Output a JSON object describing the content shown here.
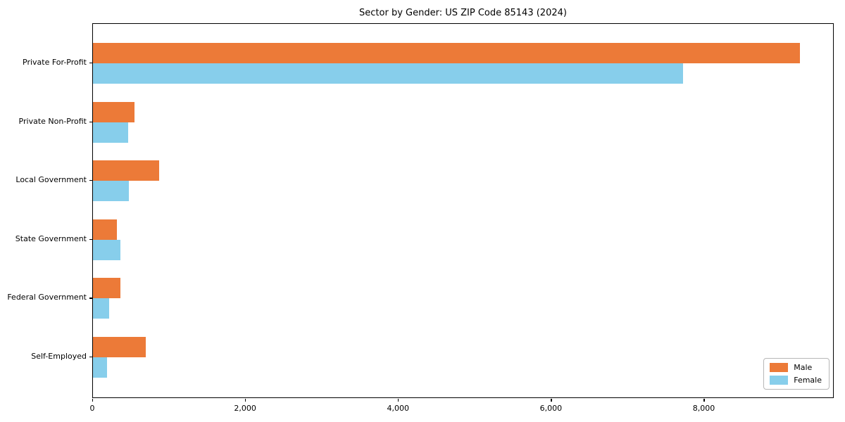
{
  "title": "Sector by Gender: US ZIP Code 85143 (2024)",
  "chart_data": {
    "type": "bar",
    "orientation": "horizontal",
    "title": "Sector by Gender: US ZIP Code 85143 (2024)",
    "categories": [
      "Private For-Profit",
      "Private Non-Profit",
      "Local Government",
      "State Government",
      "Federal Government",
      "Self-Employed"
    ],
    "series": [
      {
        "name": "Male",
        "color": "#EC7A38",
        "values": [
          9250,
          540,
          870,
          315,
          360,
          695
        ]
      },
      {
        "name": "Female",
        "color": "#87CEEB",
        "values": [
          7720,
          460,
          470,
          355,
          210,
          185
        ]
      }
    ],
    "xlabel": "",
    "ylabel": "",
    "xlim": [
      0,
      9700
    ],
    "x_ticks": [
      0,
      2000,
      4000,
      6000,
      8000
    ],
    "x_tick_labels": [
      "0",
      "2,000",
      "4,000",
      "6,000",
      "8,000"
    ],
    "grid": false,
    "legend_position": "lower right"
  },
  "legend": {
    "items": [
      {
        "label": "Male",
        "color": "#EC7A38"
      },
      {
        "label": "Female",
        "color": "#87CEEB"
      }
    ]
  }
}
